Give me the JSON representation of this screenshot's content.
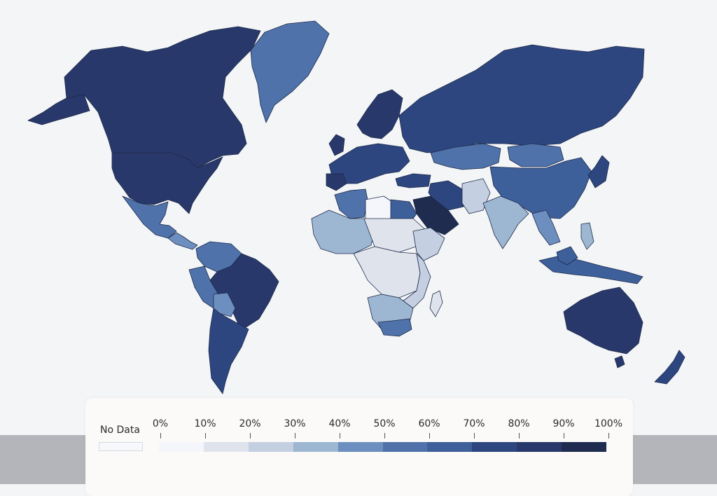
{
  "legend": {
    "no_data_label": "No Data",
    "no_data_color": "#f6f8fb",
    "ticks": [
      "0%",
      "10%",
      "20%",
      "30%",
      "40%",
      "50%",
      "60%",
      "70%",
      "80%",
      "90%",
      "100%"
    ],
    "bins": [
      "#f4f6fb",
      "#dfe4ec",
      "#c4cfe1",
      "#9db7d3",
      "#6d8fbf",
      "#4f72aa",
      "#3d5f9a",
      "#2d4680",
      "#28386a",
      "#1f2b4f"
    ]
  },
  "colors": {
    "background": "#f3f5f7",
    "border": "#1e2a4a"
  }
}
